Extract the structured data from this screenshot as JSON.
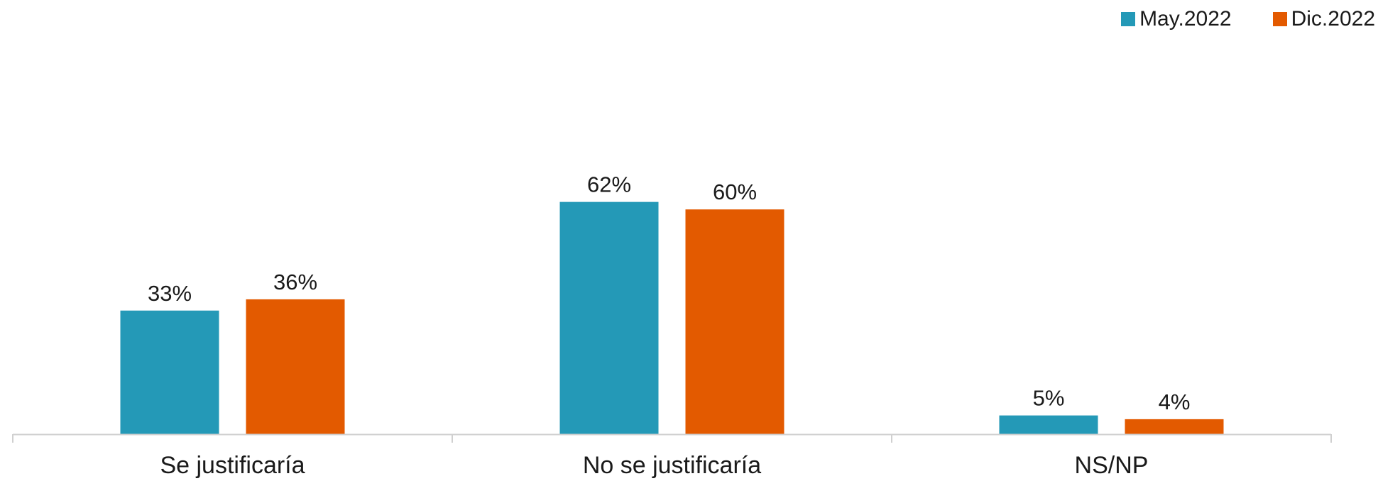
{
  "chart_data": {
    "type": "bar",
    "categories": [
      "Se justificaría",
      "No se justificaría",
      "NS/NP"
    ],
    "series": [
      {
        "name": "May.2022",
        "color": "#2499b7",
        "values": [
          33,
          62,
          5
        ]
      },
      {
        "name": "Dic.2022",
        "color": "#e35a00",
        "values": [
          36,
          60,
          4
        ]
      }
    ],
    "value_suffix": "%",
    "legend": "top-right",
    "grid": false
  }
}
